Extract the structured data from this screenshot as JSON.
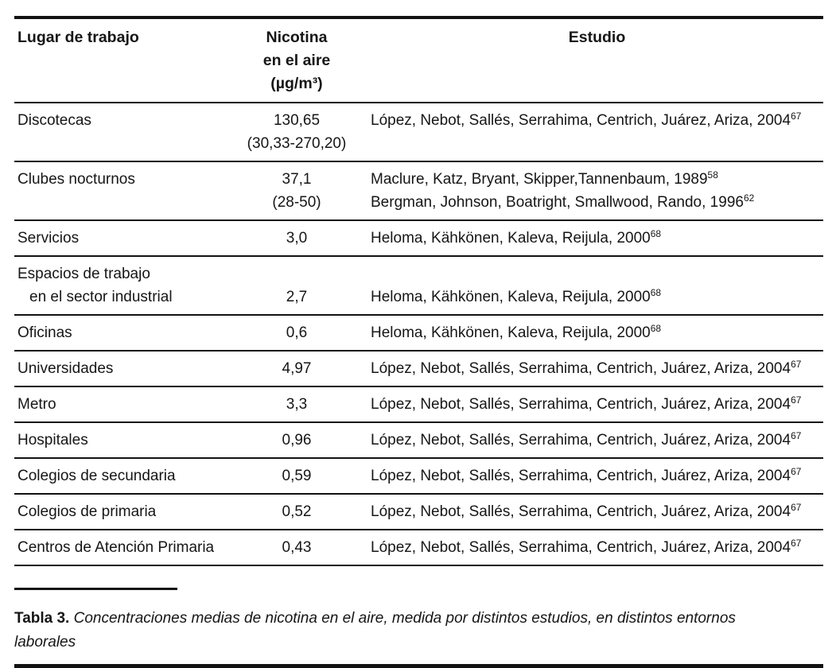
{
  "colors": {
    "ink": "#161616",
    "background": "#ffffff"
  },
  "table": {
    "header": {
      "lugar": "Lugar de trabajo",
      "nicotina_lines": [
        "Nicotina",
        "en el aire",
        "(µg/m³)"
      ],
      "estudio": "Estudio"
    },
    "rows": [
      {
        "lugar_lines": [
          "Discotecas"
        ],
        "valor_lines": [
          "130,65",
          "(30,33-270,20)"
        ],
        "estudios": [
          {
            "text": "López, Nebot, Sallés, Serrahima, Centrich, Juárez, Ariza, 2004",
            "ref": "67"
          }
        ]
      },
      {
        "lugar_lines": [
          "Clubes nocturnos"
        ],
        "valor_lines": [
          "37,1",
          "(28-50)"
        ],
        "estudios": [
          {
            "text": "Maclure, Katz, Bryant, Skipper,Tannenbaum, 1989",
            "ref": "58"
          },
          {
            "text": "Bergman, Johnson, Boatright, Smallwood, Rando, 1996",
            "ref": "62"
          }
        ]
      },
      {
        "lugar_lines": [
          "Servicios"
        ],
        "valor_lines": [
          "3,0"
        ],
        "estudios": [
          {
            "text": "Heloma, Kähkönen, Kaleva, Reijula, 2000",
            "ref": "68"
          }
        ]
      },
      {
        "lugar_lines": [
          "Espacios de trabajo",
          "en el sector industrial"
        ],
        "valor_lines": [
          "2,7"
        ],
        "estudios": [
          {
            "text": "Heloma, Kähkönen, Kaleva, Reijula, 2000",
            "ref": "68"
          }
        ]
      },
      {
        "lugar_lines": [
          "Oficinas"
        ],
        "valor_lines": [
          "0,6"
        ],
        "estudios": [
          {
            "text": "Heloma, Kähkönen, Kaleva, Reijula, 2000",
            "ref": "68"
          }
        ]
      },
      {
        "lugar_lines": [
          "Universidades"
        ],
        "valor_lines": [
          "4,97"
        ],
        "estudios": [
          {
            "text": "López, Nebot, Sallés, Serrahima, Centrich, Juárez, Ariza, 2004",
            "ref": "67"
          }
        ]
      },
      {
        "lugar_lines": [
          "Metro"
        ],
        "valor_lines": [
          "3,3"
        ],
        "estudios": [
          {
            "text": "López, Nebot, Sallés, Serrahima, Centrich, Juárez, Ariza, 2004",
            "ref": "67"
          }
        ]
      },
      {
        "lugar_lines": [
          "Hospitales"
        ],
        "valor_lines": [
          "0,96"
        ],
        "estudios": [
          {
            "text": "López, Nebot, Sallés, Serrahima, Centrich, Juárez, Ariza, 2004",
            "ref": "67"
          }
        ]
      },
      {
        "lugar_lines": [
          "Colegios de secundaria"
        ],
        "valor_lines": [
          "0,59"
        ],
        "estudios": [
          {
            "text": "López, Nebot, Sallés, Serrahima, Centrich, Juárez, Ariza, 2004",
            "ref": "67"
          }
        ]
      },
      {
        "lugar_lines": [
          "Colegios de primaria"
        ],
        "valor_lines": [
          "0,52"
        ],
        "estudios": [
          {
            "text": "López, Nebot, Sallés, Serrahima, Centrich, Juárez, Ariza, 2004",
            "ref": "67"
          }
        ]
      },
      {
        "lugar_lines": [
          "Centros de Atención Primaria"
        ],
        "valor_lines": [
          "0,43"
        ],
        "estudios": [
          {
            "text": "López, Nebot, Sallés, Serrahima, Centrich, Juárez, Ariza, 2004",
            "ref": "67"
          }
        ]
      }
    ]
  },
  "caption": {
    "label": "Tabla 3.",
    "text": "Concentraciones medias de nicotina en el aire, medida por distintos estudios, en distintos entornos laborales"
  }
}
